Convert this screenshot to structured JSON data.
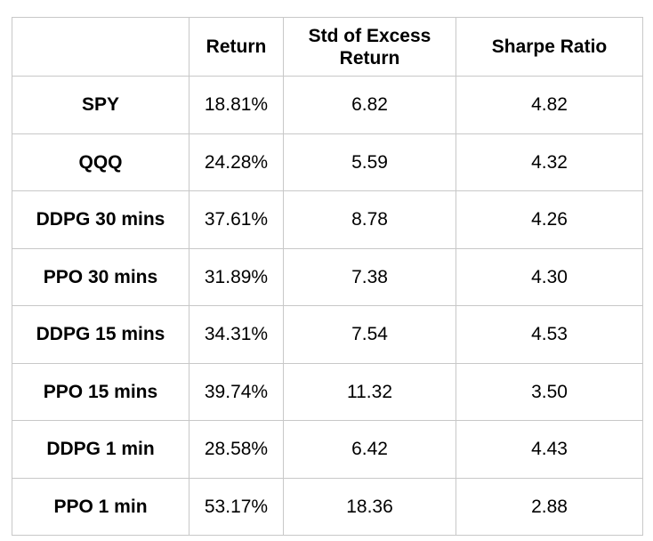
{
  "table": {
    "headers": [
      "",
      "Return",
      "Std of Excess Return",
      "Sharpe Ratio"
    ],
    "rows": [
      {
        "name": "SPY",
        "return": "18.81%",
        "std": "6.82",
        "sharpe": "4.82"
      },
      {
        "name": "QQQ",
        "return": "24.28%",
        "std": "5.59",
        "sharpe": "4.32"
      },
      {
        "name": "DDPG 30 mins",
        "return": "37.61%",
        "std": "8.78",
        "sharpe": "4.26"
      },
      {
        "name": "PPO 30 mins",
        "return": "31.89%",
        "std": "7.38",
        "sharpe": "4.30"
      },
      {
        "name": "DDPG 15 mins",
        "return": "34.31%",
        "std": "7.54",
        "sharpe": "4.53"
      },
      {
        "name": "PPO 15 mins",
        "return": "39.74%",
        "std": "11.32",
        "sharpe": "3.50"
      },
      {
        "name": "DDPG 1 min",
        "return": "28.58%",
        "std": "6.42",
        "sharpe": "4.43"
      },
      {
        "name": "PPO 1 min",
        "return": "53.17%",
        "std": "18.36",
        "sharpe": "2.88"
      }
    ]
  },
  "colors": {
    "border": "#c8c8c8",
    "text": "#000000",
    "background": "#ffffff"
  }
}
